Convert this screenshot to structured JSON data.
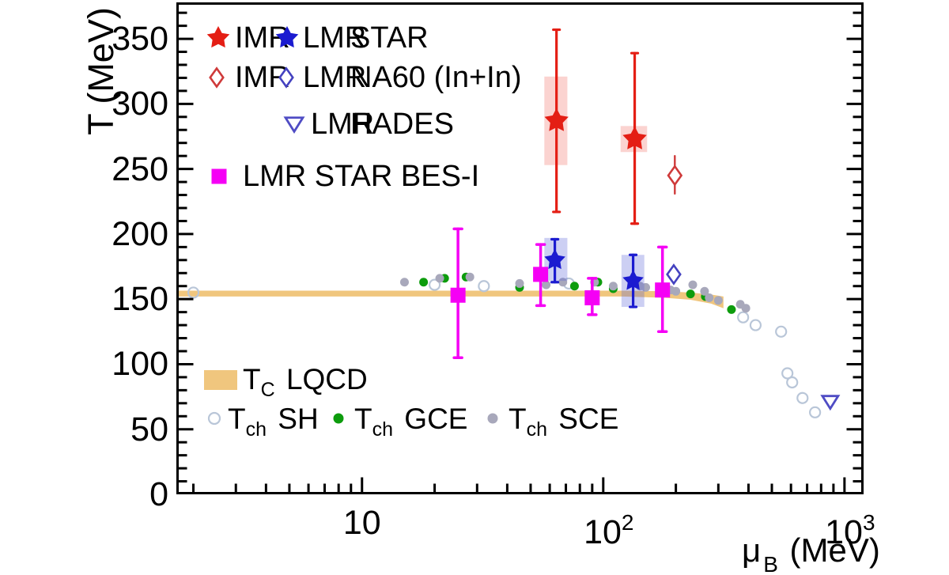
{
  "figure": {
    "y_axis": {
      "title": "T (MeV)",
      "tick_labels": [
        "0",
        "50",
        "100",
        "150",
        "200",
        "250",
        "300",
        "350"
      ]
    },
    "x_axis": {
      "title_mu": "μ",
      "title_sub": "B",
      "title_unit": " (MeV)",
      "tick_labels": [
        {
          "base": "10",
          "exp": ""
        },
        {
          "base": "10",
          "exp": "2"
        },
        {
          "base": "10",
          "exp": "3"
        }
      ]
    }
  },
  "legend_top": {
    "rows": [
      {
        "items": [
          {
            "marker": "star",
            "color": "#e41e14",
            "label": "IMR"
          },
          {
            "marker": "star",
            "color": "#1b1bd0",
            "label": "LMR"
          }
        ],
        "experiment": "STAR"
      },
      {
        "items": [
          {
            "marker": "diamond-open",
            "color": "#cf3a3a",
            "label": "IMR"
          },
          {
            "marker": "diamond-open",
            "color": "#4442c0",
            "label": "LMR"
          }
        ],
        "experiment": "NA60 (In+In)"
      },
      {
        "items": [
          {
            "marker": "triangle-open",
            "color": "#4f4cc4",
            "label": "LMR"
          }
        ],
        "experiment": "HADES"
      },
      {
        "items": [
          {
            "marker": "square",
            "color": "#f500f5",
            "label": "LMR STAR BES-I"
          }
        ],
        "experiment": ""
      }
    ]
  },
  "legend_bottom": {
    "lqcd": {
      "swatch_color": "#f0c67e",
      "t": "T",
      "sub": "C",
      "rest": "LQCD"
    },
    "items": [
      {
        "marker": "circle-open",
        "color": "#b9c6d8",
        "t": "T",
        "sub": "ch",
        "rest": "SH"
      },
      {
        "marker": "circle",
        "color": "#0d9c0d",
        "t": "T",
        "sub": "ch",
        "rest": "GCE"
      },
      {
        "marker": "circle",
        "color": "#a8a8bb",
        "t": "T",
        "sub": "ch",
        "rest": "SCE"
      }
    ]
  },
  "chart_data": {
    "type": "scatter",
    "title": "",
    "xlabel": "μ_B (MeV)",
    "ylabel": "T (MeV)",
    "x_scale": "log",
    "xlim": [
      1.7,
      1200
    ],
    "ylim": [
      0,
      378
    ],
    "x_major_ticks": [
      10,
      100,
      1000
    ],
    "y_major_ticks": [
      0,
      50,
      100,
      150,
      200,
      250,
      300,
      350
    ],
    "y_minor_step": 10,
    "lqcd_band": {
      "label": "TC LQCD",
      "color": "#f0c67e",
      "top": [
        [
          1.7,
          156.5
        ],
        [
          120,
          156.5
        ],
        [
          180,
          156
        ],
        [
          230,
          155
        ],
        [
          280,
          153.5
        ],
        [
          315,
          152
        ]
      ],
      "bottom": [
        [
          1.7,
          152
        ],
        [
          120,
          152
        ],
        [
          180,
          151
        ],
        [
          230,
          149.5
        ],
        [
          280,
          146.5
        ],
        [
          315,
          143
        ]
      ]
    },
    "series": [
      {
        "name": "IMR STAR",
        "marker": "star",
        "size": 16,
        "color": "#e41e14",
        "band_color": "rgba(238,70,60,0.24)",
        "points": [
          {
            "mu": 64,
            "T": 287,
            "stat_lo": 217,
            "stat_hi": 357,
            "syst": {
              "mu_lo": 57,
              "mu_hi": 71,
              "T_lo": 253,
              "T_hi": 321
            }
          },
          {
            "mu": 135,
            "T": 273,
            "stat_lo": 208,
            "stat_hi": 339,
            "syst": {
              "mu_lo": 118,
              "mu_hi": 152,
              "T_lo": 263,
              "T_hi": 283
            }
          }
        ]
      },
      {
        "name": "LMR STAR",
        "marker": "star",
        "size": 14,
        "color": "#1b1bd0",
        "band_color": "rgba(85,95,215,0.30)",
        "points": [
          {
            "mu": 63,
            "T": 180,
            "stat_lo": 163,
            "stat_hi": 196,
            "syst": {
              "mu_lo": 57,
              "mu_hi": 71,
              "T_lo": 164,
              "T_hi": 197
            }
          },
          {
            "mu": 133,
            "T": 164,
            "stat_lo": 144,
            "stat_hi": 184,
            "syst": {
              "mu_lo": 119,
              "mu_hi": 148,
              "T_lo": 144,
              "T_hi": 184
            }
          }
        ]
      },
      {
        "name": "IMR NA60 (In+In)",
        "marker": "diamond-open",
        "size": 11,
        "color": "#cf3a3a",
        "points": [
          {
            "mu": 198,
            "T": 245,
            "stat_lo": 231,
            "stat_hi": 260
          }
        ]
      },
      {
        "name": "LMR NA60 (In+In)",
        "marker": "diamond-open",
        "size": 11,
        "color": "#4442c0",
        "points": [
          {
            "mu": 196,
            "T": 169,
            "stat_lo": 163,
            "stat_hi": 175
          }
        ]
      },
      {
        "name": "LMR HADES",
        "marker": "triangle-open",
        "size": 10,
        "color": "#4f4cc4",
        "points": [
          {
            "mu": 873,
            "T": 71
          }
        ]
      },
      {
        "name": "LMR STAR BES-I",
        "marker": "square",
        "size": 19,
        "color": "#f500f5",
        "points": [
          {
            "mu": 25,
            "T": 153,
            "stat_lo": 105,
            "stat_hi": 204
          },
          {
            "mu": 55,
            "T": 169,
            "stat_lo": 145,
            "stat_hi": 192
          },
          {
            "mu": 90,
            "T": 151,
            "stat_lo": 138,
            "stat_hi": 166
          },
          {
            "mu": 176,
            "T": 157,
            "stat_lo": 125,
            "stat_hi": 190
          }
        ]
      },
      {
        "name": "Tch SH",
        "marker": "circle-open",
        "size": 6.5,
        "color": "#b9c6d8",
        "points": [
          {
            "mu": 2.0,
            "T": 155
          },
          {
            "mu": 20,
            "T": 161
          },
          {
            "mu": 32,
            "T": 160
          },
          {
            "mu": 72,
            "T": 162
          },
          {
            "mu": 380,
            "T": 136
          },
          {
            "mu": 428,
            "T": 130
          },
          {
            "mu": 546,
            "T": 125
          },
          {
            "mu": 580,
            "T": 93
          },
          {
            "mu": 607,
            "T": 86
          },
          {
            "mu": 670,
            "T": 74
          },
          {
            "mu": 755,
            "T": 63
          }
        ]
      },
      {
        "name": "Tch GCE",
        "marker": "circle",
        "size": 5.5,
        "color": "#0d9c0d",
        "points": [
          {
            "mu": 18,
            "T": 163
          },
          {
            "mu": 22,
            "T": 166
          },
          {
            "mu": 27,
            "T": 167
          },
          {
            "mu": 45,
            "T": 159
          },
          {
            "mu": 76,
            "T": 160
          },
          {
            "mu": 95,
            "T": 163
          },
          {
            "mu": 110,
            "T": 158
          },
          {
            "mu": 230,
            "T": 154
          },
          {
            "mu": 265,
            "T": 152
          },
          {
            "mu": 340,
            "T": 142
          }
        ]
      },
      {
        "name": "Tch SCE",
        "marker": "circle",
        "size": 5.5,
        "color": "#a8a8bb",
        "points": [
          {
            "mu": 15,
            "T": 163
          },
          {
            "mu": 21,
            "T": 166
          },
          {
            "mu": 28,
            "T": 167
          },
          {
            "mu": 45,
            "T": 162
          },
          {
            "mu": 58,
            "T": 161
          },
          {
            "mu": 68,
            "T": 163
          },
          {
            "mu": 92,
            "T": 163
          },
          {
            "mu": 110,
            "T": 160
          },
          {
            "mu": 142,
            "T": 160
          },
          {
            "mu": 150,
            "T": 159
          },
          {
            "mu": 190,
            "T": 157
          },
          {
            "mu": 200,
            "T": 156
          },
          {
            "mu": 235,
            "T": 161
          },
          {
            "mu": 263,
            "T": 156
          },
          {
            "mu": 275,
            "T": 151
          },
          {
            "mu": 300,
            "T": 149
          },
          {
            "mu": 370,
            "T": 146
          },
          {
            "mu": 390,
            "T": 143
          }
        ]
      }
    ]
  }
}
